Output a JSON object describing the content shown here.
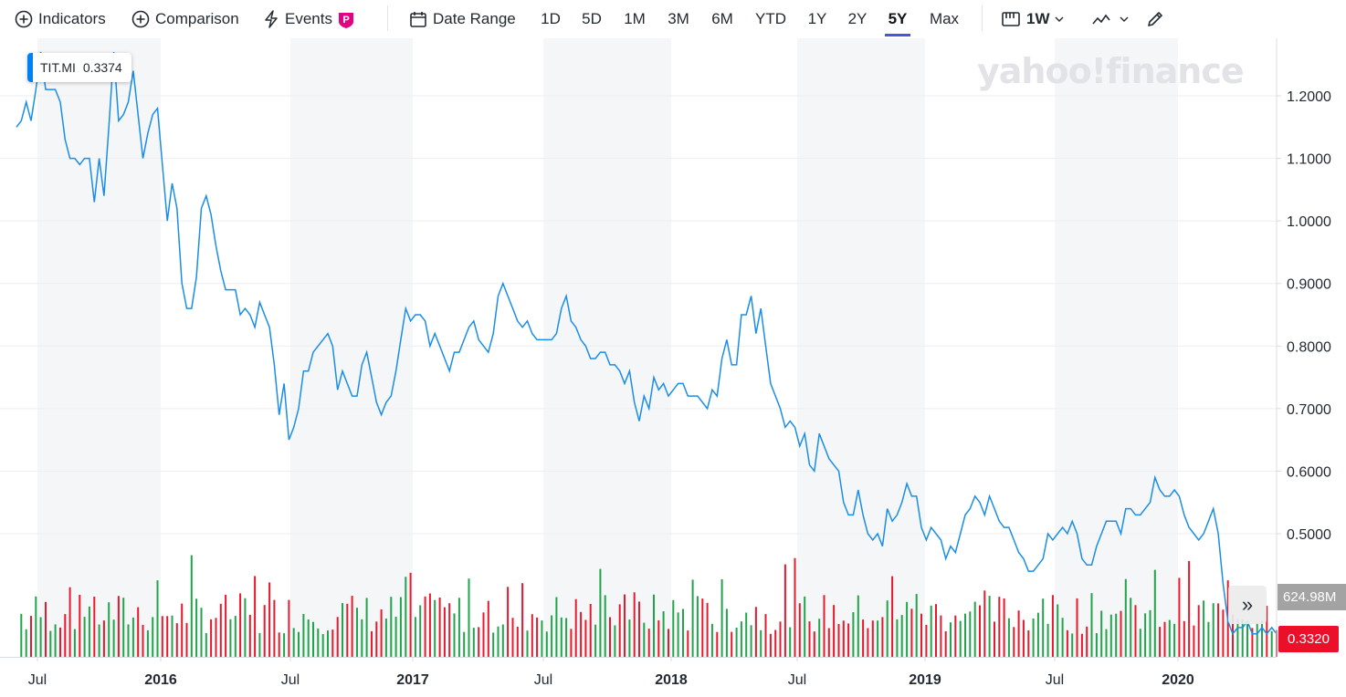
{
  "toolbar": {
    "indicators": "Indicators",
    "comparison": "Comparison",
    "events": "Events",
    "events_badge": "P",
    "date_range": "Date Range",
    "ranges": [
      "1D",
      "5D",
      "1M",
      "3M",
      "6M",
      "YTD",
      "1Y",
      "2Y",
      "5Y",
      "Max"
    ],
    "active_range": "5Y",
    "interval": "1W",
    "accent_color": "#4156e5"
  },
  "tooltip": {
    "symbol": "TIT.MI",
    "value": "0.3374"
  },
  "watermark": "yahoo!finance",
  "volume_label": "624.98M",
  "price_label": "0.3320",
  "chart_data": {
    "type": "line",
    "x_tick_labels": [
      "Jul",
      "2016",
      "Jul",
      "2017",
      "Jul",
      "2018",
      "Jul",
      "2019",
      "Jul",
      "2020"
    ],
    "y_tick_labels": [
      "0.5000",
      "0.6000",
      "0.7000",
      "0.8000",
      "0.9000",
      "1.0000",
      "1.1000",
      "1.2000"
    ],
    "ylim": [
      0.32,
      1.24
    ],
    "line_color": "#1a8de8",
    "up_volume_color": "#21a44b",
    "down_volume_color": "#e8192c",
    "series": [
      {
        "values": [
          1.15,
          1.16,
          1.19,
          1.16,
          1.21,
          1.27,
          1.21,
          1.21,
          1.21,
          1.19,
          1.13,
          1.1,
          1.1,
          1.09,
          1.1,
          1.1,
          1.03,
          1.1,
          1.04,
          1.15,
          1.27,
          1.16,
          1.17,
          1.19,
          1.24,
          1.17,
          1.1,
          1.14,
          1.17,
          1.18,
          1.09,
          1.0,
          1.06,
          1.02,
          0.9,
          0.86,
          0.86,
          0.91,
          1.02,
          1.04,
          1.01,
          0.96,
          0.92,
          0.89,
          0.89,
          0.89,
          0.85,
          0.86,
          0.85,
          0.83,
          0.87,
          0.85,
          0.83,
          0.77,
          0.69,
          0.74,
          0.65,
          0.67,
          0.7,
          0.76,
          0.76,
          0.79,
          0.8,
          0.81,
          0.82,
          0.8,
          0.73,
          0.76,
          0.74,
          0.72,
          0.72,
          0.77,
          0.79,
          0.75,
          0.71,
          0.69,
          0.71,
          0.72,
          0.76,
          0.81,
          0.86,
          0.84,
          0.85,
          0.85,
          0.84,
          0.8,
          0.82,
          0.8,
          0.78,
          0.76,
          0.79,
          0.79,
          0.81,
          0.83,
          0.84,
          0.81,
          0.8,
          0.79,
          0.82,
          0.88,
          0.9,
          0.88,
          0.86,
          0.84,
          0.83,
          0.84,
          0.82,
          0.81,
          0.81,
          0.81,
          0.81,
          0.82,
          0.86,
          0.88,
          0.84,
          0.83,
          0.81,
          0.8,
          0.78,
          0.78,
          0.79,
          0.79,
          0.77,
          0.77,
          0.76,
          0.74,
          0.76,
          0.71,
          0.68,
          0.72,
          0.7,
          0.75,
          0.73,
          0.74,
          0.72,
          0.73,
          0.74,
          0.74,
          0.72,
          0.72,
          0.72,
          0.71,
          0.7,
          0.73,
          0.72,
          0.78,
          0.81,
          0.77,
          0.77,
          0.85,
          0.85,
          0.88,
          0.82,
          0.86,
          0.8,
          0.74,
          0.72,
          0.7,
          0.67,
          0.68,
          0.67,
          0.64,
          0.66,
          0.61,
          0.6,
          0.66,
          0.64,
          0.62,
          0.61,
          0.6,
          0.55,
          0.53,
          0.53,
          0.57,
          0.53,
          0.5,
          0.49,
          0.5,
          0.48,
          0.54,
          0.52,
          0.53,
          0.55,
          0.58,
          0.56,
          0.56,
          0.51,
          0.49,
          0.51,
          0.5,
          0.49,
          0.46,
          0.48,
          0.47,
          0.5,
          0.53,
          0.54,
          0.56,
          0.55,
          0.53,
          0.56,
          0.54,
          0.52,
          0.51,
          0.51,
          0.49,
          0.47,
          0.46,
          0.44,
          0.44,
          0.45,
          0.46,
          0.5,
          0.49,
          0.5,
          0.51,
          0.5,
          0.52,
          0.5,
          0.46,
          0.45,
          0.45,
          0.48,
          0.5,
          0.52,
          0.52,
          0.52,
          0.5,
          0.54,
          0.54,
          0.53,
          0.53,
          0.54,
          0.55,
          0.59,
          0.57,
          0.56,
          0.56,
          0.57,
          0.56,
          0.53,
          0.51,
          0.5,
          0.49,
          0.5,
          0.52,
          0.54,
          0.5,
          0.42,
          0.36,
          0.34,
          0.35,
          0.35,
          0.36,
          0.34,
          0.34,
          0.35,
          0.34,
          0.35,
          0.34
        ]
      }
    ]
  }
}
